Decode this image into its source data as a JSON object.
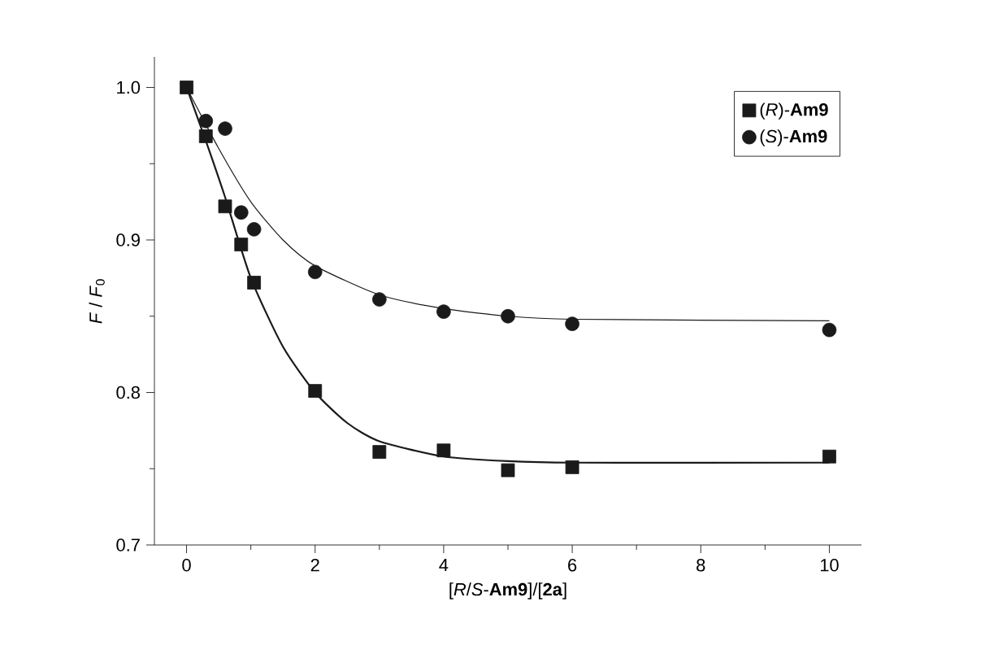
{
  "chart_data": {
    "type": "scatter",
    "xlabel": "[*R*/*S*-**Am9**]/[**2a**]",
    "ylabel": "*F* / *F*$_{0}$",
    "xlim": [
      -0.5,
      10.5
    ],
    "ylim": [
      0.7,
      1.02
    ],
    "xticks": [
      0,
      2,
      4,
      6,
      8,
      10
    ],
    "yticks": [
      {
        "value": 0.7,
        "label": "0.7"
      },
      {
        "value": 0.8,
        "label": "0.8"
      },
      {
        "value": 0.9,
        "label": "0.9"
      },
      {
        "value": 1.0,
        "label": "1.0"
      }
    ],
    "legend": "top right",
    "grid": false,
    "series": [
      {
        "name": "(*R*)-**Am9**",
        "color": "#1a1a1a",
        "marker": "square",
        "x": [
          0,
          0.3,
          0.6,
          0.85,
          1.05,
          2,
          3,
          4,
          5,
          6,
          10
        ],
        "values": [
          1.0,
          0.968,
          0.922,
          0.897,
          0.872,
          0.801,
          0.761,
          0.762,
          0.749,
          0.751,
          0.758
        ]
      },
      {
        "name": "(*S*)-**Am9**",
        "color": "#1a1a1a",
        "marker": "circle",
        "x": [
          0.3,
          0.6,
          0.85,
          1.05,
          2,
          3,
          4,
          5,
          6,
          10
        ],
        "values": [
          0.978,
          0.973,
          0.918,
          0.907,
          0.879,
          0.861,
          0.853,
          0.85,
          0.845,
          0.841
        ]
      },
      {
        "type": "line",
        "color": "#1a1a1a",
        "marker": "none",
        "x": [
          0,
          0.3,
          0.6,
          1,
          1.5,
          2,
          2.5,
          3,
          4,
          5,
          6,
          10
        ],
        "values": [
          1.0,
          0.965,
          0.928,
          0.875,
          0.83,
          0.8,
          0.78,
          0.768,
          0.758,
          0.755,
          0.754,
          0.754
        ]
      },
      {
        "type": "line",
        "color": "#1a1a1a",
        "marker": "none",
        "x": [
          0,
          0.5,
          1,
          1.5,
          2,
          3,
          4,
          5,
          6,
          10
        ],
        "values": [
          1.0,
          0.96,
          0.925,
          0.9,
          0.883,
          0.864,
          0.855,
          0.85,
          0.848,
          0.847
        ]
      }
    ]
  }
}
